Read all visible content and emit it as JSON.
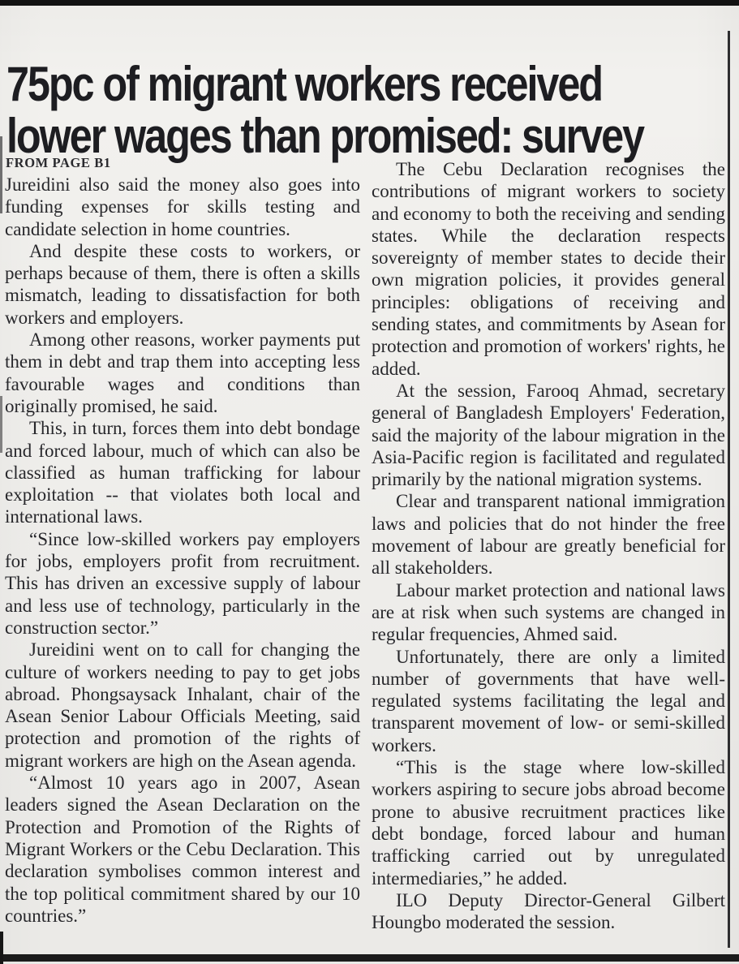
{
  "article": {
    "headline_line1": "75pc of migrant workers received",
    "headline_line2": "lower wages than promised: survey",
    "kicker": "FROM PAGE B1",
    "columns": {
      "left": [
        "Jureidini also said the money also goes into funding expenses for skills testing and candidate selection in home countries.",
        "And despite these costs to workers, or perhaps because of them, there is often a skills mismatch, leading to dissatisfaction for both workers and employers.",
        "Among other reasons, worker payments put them in debt and trap them into accepting less favourable wages and conditions than originally promised, he said.",
        "This, in turn, forces them into debt bondage and forced labour, much of which can also be classified as human trafficking for labour exploitation -- that violates both local and international laws.",
        "“Since low-skilled workers pay employers for jobs, employers profit from recruitment. This has driven an excessive supply of labour and less use of technology, particularly in the construction sector.”",
        "Jureidini went on to call for changing the culture of workers needing to pay to get jobs abroad. Phongsaysack Inhalant, chair of the Asean Senior Labour Officials Meeting, said protection and promotion of the rights of migrant workers are high on the Asean agenda.",
        "“Almost 10 years ago in 2007, Asean leaders signed the Asean Declaration on the Protection and Promotion of the Rights of Migrant Workers or the Cebu Declaration. This declaration symbolises common interest and the top political commitment shared by our 10 countries.”"
      ],
      "right": [
        "The Cebu Declaration recognises the contributions of migrant workers to society and economy to both the receiving and sending states.  While the declaration respects sovereignty of member states to decide their own migration policies, it provides general principles: obligations of receiving and sending states, and commitments by Asean for protection and promotion of workers' rights, he added.",
        "At the session, Farooq Ahmad, secretary general of Bangladesh Employers' Federation, said the majority of the labour migration in the Asia-Pacific region is facilitated and regulated primarily by the national migration systems.",
        "Clear and transparent national immigration laws and policies that do not hinder the free movement of labour are greatly beneficial for all stakeholders.",
        "Labour market protection and national laws are at risk when such systems are changed in regular frequencies, Ahmed said.",
        "Unfortunately, there are only a limited number of governments that have well-regulated systems facilitating the legal and transparent movement of low- or semi-skilled workers.",
        "“This is the stage where low-skilled workers aspiring to secure jobs abroad become prone to abusive recruitment practices like debt bondage, forced labour and human trafficking carried out by unregulated intermediaries,” he added.",
        "ILO Deputy Director-General Gilbert Houngbo moderated the session."
      ]
    }
  }
}
